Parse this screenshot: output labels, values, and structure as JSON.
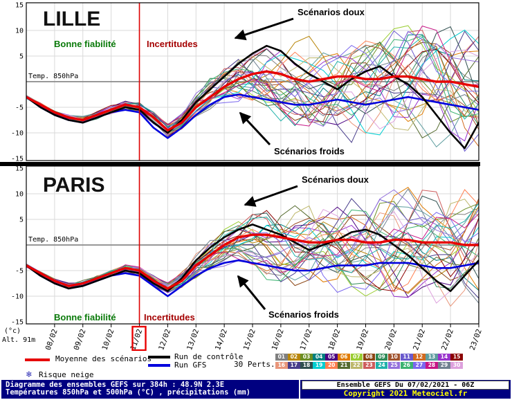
{
  "panels": [
    {
      "title": "LILLE",
      "good_label": "Bonne fiabilité",
      "uncertain_label": "Incertitudes",
      "mild_label": "Scénarios doux",
      "cold_label": "Scénarios froids",
      "axis_note": "Temp. 850hPa"
    },
    {
      "title": "PARIS",
      "good_label": "Bonne fiabilité",
      "uncertain_label": "Incertitudes",
      "mild_label": "Scénarios doux",
      "cold_label": "Scénarios froids",
      "axis_note": "Temp. 850hPa"
    }
  ],
  "axis": {
    "y_ticks": [
      15,
      10,
      5,
      -5,
      -10,
      -15
    ],
    "x_labels": [
      "08/02",
      "09/02",
      "10/02",
      "11/02",
      "12/02",
      "13/02",
      "14/02",
      "15/02",
      "16/02",
      "17/02",
      "18/02",
      "19/02",
      "20/02",
      "21/02",
      "22/02",
      "23/02"
    ],
    "highlighted_date": "11/02",
    "unit_label": "(°c)",
    "alt_label": "Alt. 91m"
  },
  "legend": {
    "mean_label": "Moyenne des scénarios",
    "control_label": "Run de contrôle",
    "gfs_label": "Run GFS",
    "perts_label": "30 Perts.",
    "snow_label": "Risque neige",
    "members": [
      "01",
      "02",
      "03",
      "04",
      "05",
      "06",
      "07",
      "08",
      "09",
      "10",
      "11",
      "12",
      "13",
      "14",
      "15",
      "16",
      "17",
      "18",
      "19",
      "20",
      "21",
      "22",
      "23",
      "24",
      "25",
      "26",
      "27",
      "28",
      "29",
      "30"
    ],
    "member_colors": [
      "#7f7f7f",
      "#b8860b",
      "#6b8e23",
      "#008080",
      "#4b0082",
      "#e07b00",
      "#9acd32",
      "#8b4513",
      "#2e8b57",
      "#a0522d",
      "#6a5acd",
      "#d2691e",
      "#5f9ea0",
      "#9932cc",
      "#8b0000",
      "#e9967a",
      "#483d8b",
      "#2f4f4f",
      "#00ced1",
      "#ff7f50",
      "#556b2f",
      "#bdb76b",
      "#cd5c5c",
      "#20b2aa",
      "#9370db",
      "#3cb371",
      "#7b68ee",
      "#c71585",
      "#708090",
      "#dda0dd"
    ]
  },
  "footer": {
    "line1": "Diagramme des ensembles GEFS sur 384h : 48.9N 2.3E",
    "line2": "Températures 850hPa et 500hPa (°C) , précipitations (mm)",
    "run": "Ensemble GEFS Du 07/02/2021 - 06Z",
    "copyright": "Copyright 2021 Meteociel.fr"
  },
  "colors": {
    "mean": "#e60000",
    "control": "#000000",
    "gfs": "#0000dd",
    "vline": "#dd0000",
    "good": "#0a7a0a",
    "uncertain": "#a40000",
    "navy": "#000080",
    "yellow": "#ffff00"
  },
  "chart_data": [
    {
      "type": "line",
      "title": "LILLE",
      "ylabel": "Temp. 850hPa (°C)",
      "ylim": [
        -15,
        15
      ],
      "yticks": [
        15,
        10,
        5,
        -5,
        -10,
        -15
      ],
      "x_hours_span": 384,
      "x_step_days": 0.5,
      "x_tick_labels": [
        "08/02",
        "09/02",
        "10/02",
        "11/02",
        "12/02",
        "13/02",
        "14/02",
        "15/02",
        "16/02",
        "17/02",
        "18/02",
        "19/02",
        "20/02",
        "21/02",
        "22/02",
        "23/02"
      ],
      "grid": true,
      "legend_position": "bottom",
      "series": [
        {
          "name": "Moyenne des scénarios",
          "color": "#e60000",
          "values": [
            -3,
            -4.5,
            -6,
            -7,
            -7.5,
            -6.5,
            -5.5,
            -4.5,
            -5,
            -7,
            -9.5,
            -8,
            -5,
            -3,
            -1,
            0.5,
            1.5,
            2,
            1.5,
            0.5,
            0,
            0.5,
            1,
            1,
            0.5,
            0.5,
            1,
            1,
            0.5,
            0,
            0,
            -0.5,
            -1
          ]
        },
        {
          "name": "Run de contrôle",
          "color": "#000000",
          "values": [
            -3,
            -5,
            -6.5,
            -7.5,
            -8,
            -7,
            -6,
            -5,
            -5.5,
            -8,
            -10,
            -7.5,
            -4,
            -1.5,
            1,
            3.5,
            5.5,
            7,
            6,
            3.5,
            1.5,
            0,
            -1.5,
            0.5,
            2,
            3,
            1,
            -0.5,
            -3,
            -6.5,
            -10,
            -13,
            -8
          ]
        },
        {
          "name": "Run GFS",
          "color": "#0000dd",
          "values": [
            -3,
            -5,
            -6.5,
            -7.5,
            -8,
            -7,
            -6,
            -5.5,
            -6,
            -9,
            -11,
            -9,
            -6.5,
            -4.5,
            -3,
            -2.5,
            -3,
            -3.5,
            -4,
            -4.5,
            -4.5,
            -4,
            -3.5,
            -4,
            -4.5,
            -4,
            -3.5,
            -3,
            -3.5,
            -4,
            -4.5,
            -5,
            -5.5
          ]
        }
      ],
      "ensemble_envelope": {
        "low": [
          -4.5,
          -6,
          -8,
          -9,
          -9.5,
          -8.5,
          -8,
          -7,
          -8,
          -10,
          -12.5,
          -11.5,
          -9.5,
          -8.5,
          -8.5,
          -9,
          -10,
          -11,
          -12,
          -12,
          -12.5,
          -12.5,
          -13,
          -13,
          -12.5,
          -12,
          -12,
          -12.5,
          -13,
          -13.5,
          -14,
          -14.5,
          -14
        ],
        "high": [
          -1.5,
          -3,
          -4.5,
          -5,
          -5.5,
          -4.5,
          -3,
          -2,
          -2.5,
          -4.5,
          -6.5,
          -4,
          0,
          3.5,
          6.5,
          8.5,
          9.5,
          10.5,
          10.5,
          11,
          11.5,
          11,
          10.5,
          11,
          11.5,
          12,
          12,
          12,
          12.5,
          12.5,
          12,
          12,
          12.5
        ]
      },
      "annotations": [
        "Bonne fiabilité",
        "Incertitudes",
        "Scénarios doux",
        "Scénarios froids"
      ]
    },
    {
      "type": "line",
      "title": "PARIS",
      "ylabel": "Temp. 850hPa (°C)",
      "ylim": [
        -15,
        15
      ],
      "yticks": [
        15,
        10,
        5,
        -5,
        -10,
        -15
      ],
      "x_hours_span": 384,
      "x_step_days": 0.5,
      "x_tick_labels": [
        "08/02",
        "09/02",
        "10/02",
        "11/02",
        "12/02",
        "13/02",
        "14/02",
        "15/02",
        "16/02",
        "17/02",
        "18/02",
        "19/02",
        "20/02",
        "21/02",
        "22/02",
        "23/02"
      ],
      "grid": true,
      "legend_position": "bottom",
      "series": [
        {
          "name": "Moyenne des scénarios",
          "color": "#e60000",
          "values": [
            -4,
            -5.5,
            -7,
            -8,
            -7.5,
            -6.5,
            -5.5,
            -4.5,
            -5,
            -7,
            -8.5,
            -7,
            -4,
            -2,
            0,
            1.5,
            2,
            2,
            1.5,
            1,
            0.5,
            0.5,
            1,
            1,
            0.5,
            0.5,
            1,
            1,
            0.5,
            0.5,
            0.5,
            0,
            0
          ]
        },
        {
          "name": "Run de contrôle",
          "color": "#000000",
          "values": [
            -4,
            -6,
            -7.5,
            -8.5,
            -8,
            -7,
            -6,
            -5,
            -5.5,
            -7.5,
            -9,
            -6.5,
            -3,
            -0.5,
            1.5,
            3,
            4,
            3,
            2,
            0.5,
            -1,
            0,
            1,
            2.5,
            3,
            2,
            0,
            -2,
            -4.5,
            -7,
            -9,
            -6,
            -3
          ]
        },
        {
          "name": "Run GFS",
          "color": "#0000dd",
          "values": [
            -4,
            -6,
            -7.5,
            -8.5,
            -8,
            -7,
            -6,
            -5.5,
            -6,
            -8,
            -10,
            -8,
            -6,
            -4.5,
            -3.5,
            -3,
            -3.5,
            -4,
            -4.5,
            -5,
            -5,
            -4.5,
            -4,
            -4,
            -4,
            -3.5,
            -3.5,
            -3.5,
            -4,
            -4.5,
            -4.5,
            -4,
            -3.5
          ]
        }
      ],
      "ensemble_envelope": {
        "low": [
          -5.5,
          -7,
          -8.5,
          -9.5,
          -9,
          -8.5,
          -8,
          -7,
          -7.5,
          -9.5,
          -11,
          -10,
          -8.5,
          -8,
          -8,
          -8.5,
          -9.5,
          -10.5,
          -11.5,
          -12,
          -12,
          -12,
          -12.5,
          -12.5,
          -12,
          -12,
          -12,
          -12,
          -12.5,
          -13,
          -13.5,
          -13.5,
          -13
        ],
        "high": [
          -2.5,
          -4,
          -5.5,
          -6,
          -6,
          -5,
          -3.5,
          -2.5,
          -3,
          -4.5,
          -6,
          -3.5,
          0.5,
          4,
          6.5,
          8,
          9,
          9.5,
          10,
          10.5,
          11,
          11,
          10.5,
          11,
          11.5,
          11.5,
          12,
          12,
          12,
          12.5,
          12,
          11.5,
          12
        ]
      },
      "annotations": [
        "Bonne fiabilité",
        "Incertitudes",
        "Scénarios doux",
        "Scénarios froids"
      ]
    }
  ]
}
